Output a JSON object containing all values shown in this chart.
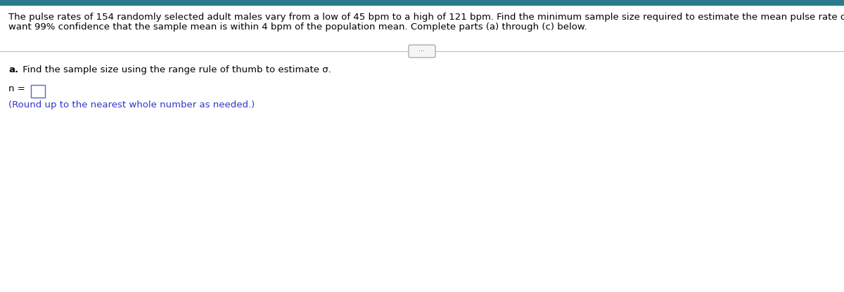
{
  "header_bar_color": "#2B7A8B",
  "background_color": "#ffffff",
  "main_text_line1": "The pulse rates of 154 randomly selected adult males vary from a low of 45 bpm to a high of 121 bpm. Find the minimum sample size required to estimate the mean pulse rate of adult males. Assume that we",
  "main_text_line2": "want 99% confidence that the sample mean is within 4 bpm of the population mean. Complete parts (a) through (c) below.",
  "main_text_color": "#000000",
  "main_text_fontsize": 9.5,
  "divider_color": "#bbbbbb",
  "dots_label": "···",
  "dots_fontsize": 7,
  "part_a_text": "a. Find the sample size using the range rule of thumb to estimate σ.",
  "part_a_color": "#000000",
  "part_a_fontsize": 9.5,
  "n_label": "n =",
  "n_fontsize": 9.5,
  "n_box_color": "#5566bb",
  "round_text": "(Round up to the nearest whole number as needed.)",
  "round_text_color": "#3333cc",
  "round_text_fontsize": 9.5,
  "fig_width": 12.0,
  "fig_height": 4.16,
  "dpi": 100
}
